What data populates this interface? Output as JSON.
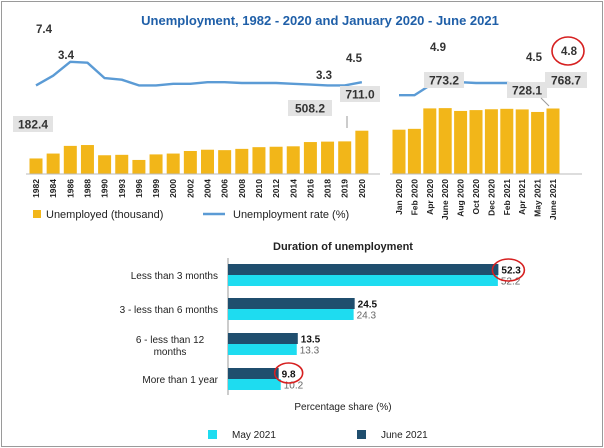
{
  "colors": {
    "bar": "#F2B619",
    "line": "#5B9BD5",
    "title": "#1F5FA8",
    "may": "#1EDCF0",
    "june": "#1F4E6E",
    "circle": "#D62020",
    "callout_bg": "#E3E3E3"
  },
  "chart_data": [
    {
      "type": "bar",
      "title": "Unemployment, 1982 - 2020 and January 2020 - June 2021",
      "annual": {
        "categories": [
          "1982",
          "1984",
          "1986",
          "1988",
          "1990",
          "1993",
          "1996",
          "1999",
          "2000",
          "2002",
          "2004",
          "2006",
          "2008",
          "2010",
          "2012",
          "2014",
          "2016",
          "2018",
          "2019",
          "2020"
        ],
        "unemployed_thousand": [
          182.4,
          240,
          330,
          340,
          220,
          225,
          165,
          230,
          240,
          270,
          285,
          280,
          295,
          315,
          320,
          325,
          375,
          380,
          383,
          508.2
        ],
        "rate_percent": [
          4.5,
          5.7,
          7.4,
          7.3,
          5.4,
          5.2,
          4.5,
          4.5,
          4.7,
          4.7,
          4.9,
          4.9,
          4.8,
          4.8,
          4.8,
          4.7,
          4.6,
          4.5,
          4.5,
          4.9
        ]
      },
      "monthly": {
        "categories": [
          "Jan 2020",
          "Feb 2020",
          "Apr 2020",
          "June 2020",
          "Aug 2020",
          "Oct 2020",
          "Dec 2020",
          "Feb 2021",
          "Apr 2021",
          "May 2021",
          "June 2021"
        ],
        "unemployed_thousand": [
          520,
          530,
          770,
          773.2,
          740,
          750,
          760,
          765,
          758,
          728.1,
          768.7
        ],
        "rate_percent": [
          3.3,
          3.3,
          4.5,
          4.9,
          4.9,
          4.8,
          4.8,
          4.8,
          4.7,
          4.5,
          4.8
        ]
      },
      "callouts": {
        "bars": [
          "182.4",
          "508.2",
          "711.0",
          "773.2",
          "728.1",
          "768.7"
        ],
        "rates": [
          "7.4",
          "3.4",
          "3.3",
          "4.5",
          "4.9",
          "4.5",
          "4.8"
        ]
      },
      "legend": [
        "Unemployed (thousand)",
        "Unemployment rate (%)"
      ]
    },
    {
      "type": "bar",
      "orientation": "horizontal",
      "title": "Duration of unemployment",
      "xlabel": "Percentage share (%)",
      "categories": [
        "Less than 3 months",
        "3 - less than 6 months",
        "6 - less than 12 months",
        "More than 1 year"
      ],
      "series": [
        {
          "name": "June 2021",
          "values": [
            52.3,
            24.5,
            13.5,
            9.8
          ]
        },
        {
          "name": "May 2021",
          "values": [
            52.2,
            24.3,
            13.3,
            10.2
          ]
        }
      ],
      "value_labels": {
        "june": [
          "52.3",
          "24.5",
          "13.5",
          "9.8"
        ],
        "may": [
          "52.2",
          "24.3",
          "13.3",
          "10.2"
        ]
      },
      "category_lines": [
        [
          "Less than 3 months"
        ],
        [
          "3 - less than 6 months"
        ],
        [
          "6 - less than 12",
          "months"
        ],
        [
          "More than 1 year"
        ]
      ],
      "legend": [
        "May 2021",
        "June 2021"
      ]
    }
  ]
}
